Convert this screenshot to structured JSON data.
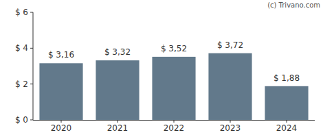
{
  "chart_data": {
    "type": "bar",
    "annotations": [
      "(c) Trivano.com"
    ],
    "categories": [
      "2020",
      "2021",
      "2022",
      "2023",
      "2024"
    ],
    "values": [
      3.16,
      3.32,
      3.52,
      3.72,
      1.88
    ],
    "value_labels": [
      "$ 3,16",
      "$ 3,32",
      "$ 3,52",
      "$ 3,72",
      "$ 1,88"
    ],
    "data_labels": true,
    "color": "#62798b",
    "ylim": [
      0,
      6
    ],
    "yticks": [
      {
        "value": 0,
        "label": "$ 0"
      },
      {
        "value": 2,
        "label": "$ 2"
      },
      {
        "value": 4,
        "label": "$ 4"
      },
      {
        "value": 6,
        "label": "$ 6"
      }
    ],
    "grid": false
  }
}
